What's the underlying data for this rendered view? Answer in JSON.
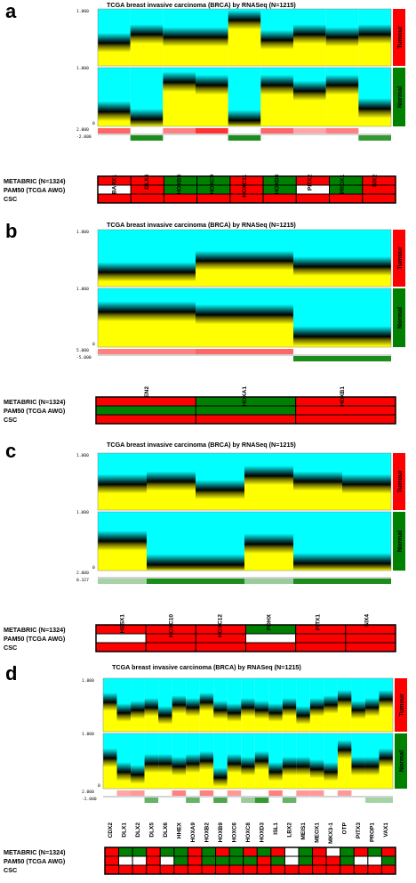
{
  "chart_data": [
    {
      "type": "heatmap",
      "panel_label": "a",
      "title": "TCGA breast invasive carcinoma (BRCA) by RNASeq (N=1215)",
      "genes": [
        "BARX1",
        "DLX4",
        "HOXB8",
        "HOXC9",
        "HOXC11",
        "HOXD8",
        "PITX2",
        "PROX1",
        "SIX2"
      ],
      "groups": [
        "Tumour",
        "Normal"
      ],
      "axis_ticks": {
        "top_max": "1.000",
        "mid_max": "1.000",
        "zero": "0",
        "diff_max": "2.000",
        "diff_min": "-2.000"
      },
      "tumour_median": [
        0.4,
        0.55,
        0.5,
        0.5,
        0.8,
        0.45,
        0.55,
        0.5,
        0.55
      ],
      "normal_median": [
        0.25,
        0.12,
        0.75,
        0.7,
        0.1,
        0.7,
        0.6,
        0.7,
        0.3
      ],
      "diff_signs": [
        "up",
        "down",
        "up",
        "up",
        "down",
        "up",
        "up",
        "up",
        "down"
      ],
      "diff_mag": [
        0.6,
        0.9,
        0.5,
        0.8,
        0.9,
        0.6,
        0.2,
        0.5,
        0.8
      ],
      "rows": [
        {
          "label": "METABRIC (N=1324)",
          "cells": [
            "red",
            "red",
            "green",
            "green",
            "red",
            "green",
            "red",
            "green",
            "red"
          ]
        },
        {
          "label": "PAM50 (TCGA AWG)",
          "cells": [
            "white",
            "red",
            "green",
            "green",
            "red",
            "green",
            "white",
            "green",
            "red"
          ]
        },
        {
          "label": "CSC",
          "cells": [
            "red",
            "red",
            "red",
            "red",
            "red",
            "red",
            "red",
            "red",
            "red"
          ]
        }
      ]
    },
    {
      "type": "heatmap",
      "panel_label": "b",
      "title": "TCGA breast invasive carcinoma (BRCA) by RNASeq (N=1215)",
      "genes": [
        "EN2",
        "HOXA1",
        "HOXB1"
      ],
      "groups": [
        "Tumour",
        "Normal"
      ],
      "axis_ticks": {
        "top_max": "1.000",
        "mid_max": "1.000",
        "zero": "0",
        "diff_max": "5.000",
        "diff_min": "-5.000"
      },
      "tumour_median": [
        0.25,
        0.45,
        0.35
      ],
      "normal_median": [
        0.6,
        0.55,
        0.18
      ],
      "diff_signs": [
        "up",
        "up",
        "down"
      ],
      "diff_mag": [
        0.5,
        0.6,
        0.9
      ],
      "rows": [
        {
          "label": "METABRIC (N=1324)",
          "cells": [
            "red",
            "green",
            "red"
          ]
        },
        {
          "label": "PAM50 (TCGA AWG)",
          "cells": [
            "green",
            "green",
            "red"
          ]
        },
        {
          "label": "CSC",
          "cells": [
            "red",
            "red",
            "red"
          ]
        }
      ]
    },
    {
      "type": "heatmap",
      "panel_label": "c",
      "title": "TCGA breast invasive carcinoma (BRCA) by RNASeq (N=1215)",
      "genes": [
        "HESX1",
        "HOXC10",
        "HOXC12",
        "PDHX",
        "PITX1",
        "SIX4"
      ],
      "groups": [
        "Tumour",
        "Normal"
      ],
      "axis_ticks": {
        "top_max": "1.000",
        "mid_max": "1.000",
        "zero": "0",
        "diff_max": "2.000",
        "diff_min": "0.327"
      },
      "tumour_median": [
        0.45,
        0.5,
        0.35,
        0.6,
        0.5,
        0.45
      ],
      "normal_median": [
        0.5,
        0.1,
        0.1,
        0.45,
        0.12,
        0.12
      ],
      "diff_signs": [
        "down",
        "down",
        "down",
        "down",
        "down",
        "down"
      ],
      "diff_mag": [
        0.3,
        0.9,
        0.9,
        0.4,
        0.9,
        0.9
      ],
      "rows": [
        {
          "label": "METABRIC (N=1324)",
          "cells": [
            "red",
            "red",
            "red",
            "green",
            "red",
            "red"
          ]
        },
        {
          "label": "PAM50 (TCGA AWG)",
          "cells": [
            "white",
            "red",
            "red",
            "white",
            "red",
            "red"
          ]
        },
        {
          "label": "CSC",
          "cells": [
            "red",
            "red",
            "red",
            "red",
            "red",
            "red"
          ]
        }
      ]
    },
    {
      "type": "heatmap",
      "panel_label": "d",
      "title": "TCGA breast invasive carcinoma (BRCA) by RNASeq (N=1215)",
      "genes": [
        "CDX2",
        "DLX1",
        "DLX2",
        "DLX5",
        "DLX6",
        "HHEX",
        "HOXA9",
        "HOXB2",
        "HOXB9",
        "HOXC6",
        "HOXC8",
        "HOXD3",
        "ISL1",
        "LBX2",
        "MEIS1",
        "MEOX1",
        "MKX3-1",
        "OTP",
        "PITX3",
        "PROP1",
        "VAX1"
      ],
      "groups": [
        "Tumour",
        "Normal"
      ],
      "axis_ticks": {
        "top_max": "1.000",
        "mid_max": "1.000",
        "zero": "0",
        "diff_max": "2.000",
        "diff_min": "-2.000"
      },
      "tumour_median": [
        0.55,
        0.35,
        0.4,
        0.45,
        0.3,
        0.5,
        0.45,
        0.55,
        0.4,
        0.35,
        0.45,
        0.4,
        0.35,
        0.45,
        0.3,
        0.45,
        0.5,
        0.6,
        0.4,
        0.45,
        0.6
      ],
      "normal_median": [
        0.55,
        0.3,
        0.25,
        0.45,
        0.45,
        0.4,
        0.45,
        0.5,
        0.2,
        0.45,
        0.4,
        0.5,
        0.3,
        0.4,
        0.4,
        0.35,
        0.3,
        0.7,
        0.4,
        0.4,
        0.55
      ],
      "diff_signs": [
        "none",
        "up",
        "up",
        "down",
        "none",
        "up",
        "down",
        "up",
        "down",
        "up",
        "down",
        "down",
        "up",
        "down",
        "up",
        "up",
        "none",
        "up",
        "none",
        "down",
        "down"
      ],
      "diff_mag": [
        0,
        0.3,
        0.4,
        0.6,
        0,
        0.5,
        0.6,
        0.5,
        0.7,
        0.4,
        0.4,
        0.8,
        0.5,
        0.6,
        0.4,
        0.4,
        0,
        0.4,
        0,
        0.3,
        0.3
      ],
      "rows": [
        {
          "label": "METABRIC (N=1324)",
          "cells": [
            "red",
            "green",
            "green",
            "red",
            "green",
            "green",
            "red",
            "green",
            "red",
            "green",
            "red",
            "green",
            "red",
            "white",
            "green",
            "red",
            "white",
            "green",
            "red",
            "green",
            "red"
          ]
        },
        {
          "label": "PAM50 (TCGA AWG)",
          "cells": [
            "red",
            "white",
            "white",
            "red",
            "white",
            "green",
            "red",
            "green",
            "green",
            "green",
            "green",
            "red",
            "green",
            "white",
            "green",
            "red",
            "red",
            "green",
            "white",
            "white",
            "green"
          ]
        },
        {
          "label": "CSC",
          "cells": [
            "red",
            "red",
            "red",
            "red",
            "red",
            "red",
            "red",
            "red",
            "red",
            "red",
            "red",
            "red",
            "red",
            "red",
            "red",
            "red",
            "red",
            "red",
            "red",
            "red",
            "red"
          ]
        }
      ]
    }
  ],
  "colors": {
    "red": "#ff0000",
    "green": "#008000",
    "white": "#ffffff",
    "cyan": "#00ffff",
    "yellow": "#ffff00",
    "teal": "#2f6f6f"
  }
}
